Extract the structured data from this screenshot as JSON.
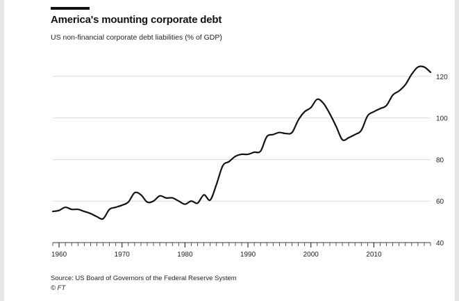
{
  "title": "America's mounting corporate debt",
  "subtitle": "US non-financial corporate debt liabilities (% of GDP)",
  "source": "Source: US Board of Governors of the Federal Reserve System",
  "copyright": "© FT",
  "colors": {
    "line": "#111111",
    "grid": "#dcdcdc",
    "background": "#ffffff",
    "axis": "#333333"
  },
  "chart_data": {
    "type": "line",
    "title": "America's mounting corporate debt",
    "ylabel": "",
    "xlabel": "",
    "xlim": [
      1959,
      2019
    ],
    "ylim": [
      40,
      130
    ],
    "y_ticks": [
      40,
      60,
      80,
      100,
      120
    ],
    "x_ticks": [
      1960,
      1970,
      1980,
      1990,
      2000,
      2010
    ],
    "y_axis_position": "right",
    "grid": "horizontal",
    "series": [
      {
        "x": [
          1959,
          1960,
          1961,
          1962,
          1963,
          1964,
          1965,
          1966,
          1967,
          1968,
          1969,
          1970,
          1971,
          1972,
          1973,
          1974,
          1975,
          1976,
          1977,
          1978,
          1979,
          1980,
          1981,
          1982,
          1983,
          1984,
          1985,
          1986,
          1987,
          1988,
          1989,
          1990,
          1991,
          1992,
          1993,
          1994,
          1995,
          1996,
          1997,
          1998,
          1999,
          2000,
          2001,
          2002,
          2003,
          2004,
          2005,
          2006,
          2007,
          2008,
          2009,
          2010,
          2011,
          2012,
          2013,
          2014,
          2015,
          2016,
          2017,
          2018,
          2019
        ],
        "values": [
          55,
          55.5,
          57,
          56,
          56,
          55,
          54,
          52.5,
          51.5,
          56,
          57,
          58,
          59.5,
          64,
          63,
          59.5,
          60,
          62.5,
          61.5,
          61.5,
          60,
          58.5,
          60,
          59,
          63,
          60.5,
          68,
          77,
          79,
          81.5,
          82.5,
          82.5,
          83.5,
          84,
          91,
          92,
          93,
          92.5,
          93,
          99,
          103,
          105,
          109,
          107,
          102,
          96,
          89.5,
          90.5,
          92,
          94,
          101,
          103,
          104.5,
          106,
          111,
          113,
          116,
          121,
          124.5,
          124.5,
          122
        ]
      }
    ]
  }
}
